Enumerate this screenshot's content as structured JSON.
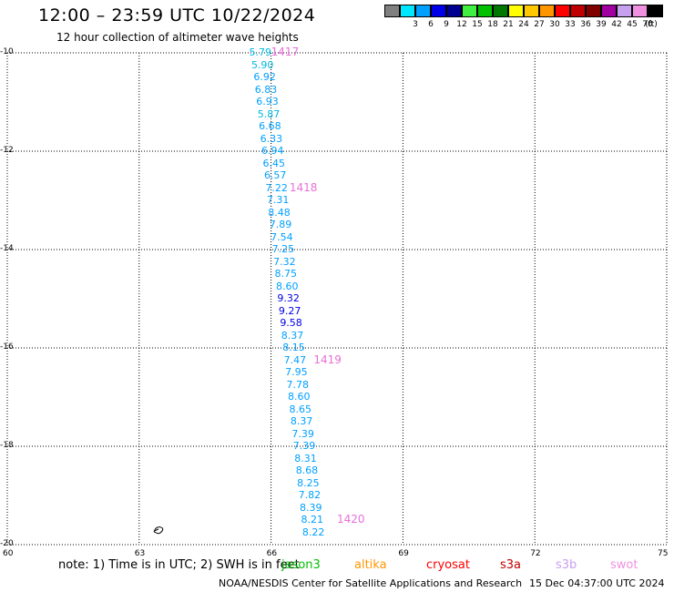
{
  "header": {
    "title": "12:00 – 23:59 UTC 10/22/2024",
    "subtitle": "12 hour collection of altimeter wave heights"
  },
  "color_scale": {
    "unit": "(ft)",
    "swatches": [
      {
        "color": "#808080"
      },
      {
        "color": "#00e8ff",
        "label": "3"
      },
      {
        "color": "#00a0ff",
        "label": "6"
      },
      {
        "color": "#0000e8",
        "label": "9"
      },
      {
        "color": "#000090",
        "label": "12"
      },
      {
        "color": "#40f040",
        "label": "15"
      },
      {
        "color": "#00c000",
        "label": "18"
      },
      {
        "color": "#007800",
        "label": "21"
      },
      {
        "color": "#ffff00",
        "label": "24"
      },
      {
        "color": "#ffc800",
        "label": "27"
      },
      {
        "color": "#ff9600",
        "label": "30"
      },
      {
        "color": "#ff0000",
        "label": "33"
      },
      {
        "color": "#c00000",
        "label": "36"
      },
      {
        "color": "#800000",
        "label": "39"
      },
      {
        "color": "#a000a0",
        "label": "42"
      },
      {
        "color": "#c8a0f0",
        "label": "45"
      },
      {
        "color": "#f090e0",
        "label": "70"
      },
      {
        "color": "#000000"
      }
    ]
  },
  "map": {
    "lon_ticks": [
      "60",
      "63",
      "66",
      "69",
      "72",
      "75"
    ],
    "lat_ticks": [
      "-10",
      "-12",
      "-14",
      "-16",
      "-18",
      "-20"
    ],
    "lon_range": [
      60,
      75
    ],
    "lat_range": [
      -10,
      -20
    ],
    "island_symbol": "landmass-outline"
  },
  "track": {
    "points": [
      {
        "lat": -10.0,
        "lon": 65.75,
        "value": "5.79",
        "color": "#00b8e0"
      },
      {
        "lat": -10.25,
        "lon": 65.8,
        "value": "5.90",
        "color": "#00b8e0"
      },
      {
        "lat": -10.5,
        "lon": 65.85,
        "value": "6.92",
        "color": "#00a0ff"
      },
      {
        "lat": -10.75,
        "lon": 65.88,
        "value": "6.83",
        "color": "#00a0ff"
      },
      {
        "lat": -11.0,
        "lon": 65.91,
        "value": "6.93",
        "color": "#00a0ff"
      },
      {
        "lat": -11.25,
        "lon": 65.94,
        "value": "5.87",
        "color": "#00b8e0"
      },
      {
        "lat": -11.5,
        "lon": 65.97,
        "value": "6.68",
        "color": "#00a0ff"
      },
      {
        "lat": -11.75,
        "lon": 66.0,
        "value": "6.33",
        "color": "#00a0ff"
      },
      {
        "lat": -12.0,
        "lon": 66.03,
        "value": "6.94",
        "color": "#00a0ff"
      },
      {
        "lat": -12.25,
        "lon": 66.06,
        "value": "6.45",
        "color": "#00a0ff"
      },
      {
        "lat": -12.5,
        "lon": 66.09,
        "value": "6.57",
        "color": "#00a0ff"
      },
      {
        "lat": -12.75,
        "lon": 66.12,
        "value": "7.22",
        "color": "#00a0ff"
      },
      {
        "lat": -13.0,
        "lon": 66.15,
        "value": "7.31",
        "color": "#00a0ff"
      },
      {
        "lat": -13.25,
        "lon": 66.18,
        "value": "8.48",
        "color": "#00a0ff"
      },
      {
        "lat": -13.5,
        "lon": 66.21,
        "value": "7.89",
        "color": "#00a0ff"
      },
      {
        "lat": -13.75,
        "lon": 66.24,
        "value": "7.54",
        "color": "#00a0ff"
      },
      {
        "lat": -14.0,
        "lon": 66.27,
        "value": "7.25",
        "color": "#00a0ff"
      },
      {
        "lat": -14.25,
        "lon": 66.3,
        "value": "7.32",
        "color": "#00a0ff"
      },
      {
        "lat": -14.5,
        "lon": 66.33,
        "value": "8.75",
        "color": "#00a0ff"
      },
      {
        "lat": -14.75,
        "lon": 66.36,
        "value": "8.60",
        "color": "#00a0ff"
      },
      {
        "lat": -15.0,
        "lon": 66.39,
        "value": "9.32",
        "color": "#0000e8"
      },
      {
        "lat": -15.25,
        "lon": 66.42,
        "value": "9.27",
        "color": "#0000e8"
      },
      {
        "lat": -15.5,
        "lon": 66.45,
        "value": "9.58",
        "color": "#0000e8"
      },
      {
        "lat": -15.75,
        "lon": 66.48,
        "value": "8.37",
        "color": "#00a0ff"
      },
      {
        "lat": -16.0,
        "lon": 66.51,
        "value": "8.15",
        "color": "#00a0ff"
      },
      {
        "lat": -16.25,
        "lon": 66.54,
        "value": "7.47",
        "color": "#00a0ff"
      },
      {
        "lat": -16.5,
        "lon": 66.57,
        "value": "7.95",
        "color": "#00a0ff"
      },
      {
        "lat": -16.75,
        "lon": 66.6,
        "value": "7.78",
        "color": "#00a0ff"
      },
      {
        "lat": -17.0,
        "lon": 66.63,
        "value": "8.60",
        "color": "#00a0ff"
      },
      {
        "lat": -17.25,
        "lon": 66.66,
        "value": "8.65",
        "color": "#00a0ff"
      },
      {
        "lat": -17.5,
        "lon": 66.69,
        "value": "8.37",
        "color": "#00a0ff"
      },
      {
        "lat": -17.75,
        "lon": 66.72,
        "value": "7.39",
        "color": "#00a0ff"
      },
      {
        "lat": -18.0,
        "lon": 66.75,
        "value": "7.39",
        "color": "#00a0ff"
      },
      {
        "lat": -18.25,
        "lon": 66.78,
        "value": "8.31",
        "color": "#00a0ff"
      },
      {
        "lat": -18.5,
        "lon": 66.81,
        "value": "8.68",
        "color": "#00a0ff"
      },
      {
        "lat": -18.75,
        "lon": 66.84,
        "value": "8.25",
        "color": "#00a0ff"
      },
      {
        "lat": -19.0,
        "lon": 66.87,
        "value": "7.82",
        "color": "#00a0ff"
      },
      {
        "lat": -19.25,
        "lon": 66.9,
        "value": "8.39",
        "color": "#00a0ff"
      },
      {
        "lat": -19.5,
        "lon": 66.93,
        "value": "8.21",
        "color": "#00a0ff"
      },
      {
        "lat": -19.75,
        "lon": 66.96,
        "value": "8.22",
        "color": "#00a0ff"
      }
    ],
    "time_labels": [
      {
        "lat": -10.0,
        "lon": 66.0,
        "text": "1417"
      },
      {
        "lat": -12.75,
        "lon": 66.42,
        "text": "1418"
      },
      {
        "lat": -16.25,
        "lon": 66.97,
        "text": "1419"
      },
      {
        "lat": -19.5,
        "lon": 67.5,
        "text": "1420"
      }
    ]
  },
  "footer": {
    "note": "note: 1) Time is in UTC; 2) SWH is in feet",
    "satellites": [
      {
        "name": "jason3",
        "color": "#00c000"
      },
      {
        "name": "altika",
        "color": "#ff9600"
      },
      {
        "name": "cryosat",
        "color": "#ff0000"
      },
      {
        "name": "s3a",
        "color": "#c00000"
      },
      {
        "name": "s3b",
        "color": "#c8a0f0"
      },
      {
        "name": "swot",
        "color": "#f090e0"
      }
    ],
    "credit": "NOAA/NESDIS Center for Satellite Applications and Research",
    "generated": "15 Dec 04:37:00 UTC 2024"
  }
}
